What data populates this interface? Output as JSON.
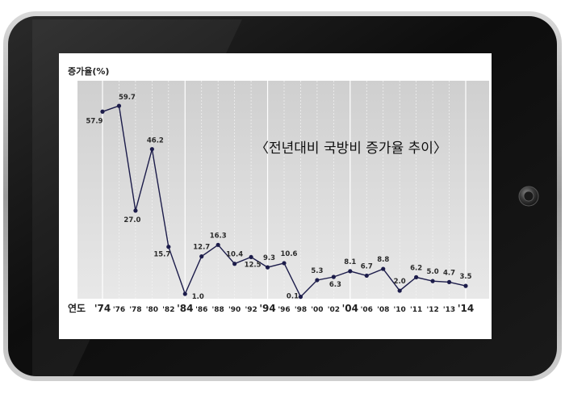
{
  "chart_data": {
    "type": "line",
    "title": "〈전년대비 국방비 증가율 추이〉",
    "ylabel": "증가율(%)",
    "xlabel": "연도",
    "ylim": [
      0,
      62
    ],
    "grid": true,
    "categories": [
      "'74",
      "'76",
      "'78",
      "'80",
      "'82",
      "'84",
      "'86",
      "'88",
      "'90",
      "'92",
      "'94",
      "'96",
      "'98",
      "'00",
      "'02",
      "'04",
      "'06",
      "'08",
      "'10",
      "'11",
      "'12",
      "'13",
      "'14"
    ],
    "major_categories": [
      "'74",
      "'84",
      "'94",
      "'04",
      "'14"
    ],
    "series": [
      {
        "values": [
          57.9,
          59.7,
          27.0,
          46.2,
          15.7,
          1.0,
          12.7,
          16.3,
          10.4,
          12.5,
          9.3,
          10.6,
          0.1,
          5.3,
          6.3,
          8.1,
          6.7,
          8.8,
          2.0,
          6.2,
          5.0,
          4.7,
          3.5
        ],
        "labels": [
          "57.9",
          "59.7",
          "27.0",
          "46.2",
          "15.7",
          "1.0",
          "12.7",
          "16.3",
          "10.4",
          "12.5",
          "9.3",
          "10.6",
          "0.1",
          "5.3",
          "6.3",
          "8.1",
          "6.7",
          "8.8",
          "2.0",
          "6.2",
          "5.0",
          "4.7",
          "3.5"
        ],
        "color": "#1c1c4a"
      }
    ]
  },
  "colors": {
    "tablet_body": "#141414",
    "tablet_rim": "#b9b9b9",
    "plot_bg": "#dcdcdc",
    "line": "#1c1c4a",
    "grid": "#ffffff"
  },
  "icons": {
    "home_button": "home-button-icon"
  }
}
